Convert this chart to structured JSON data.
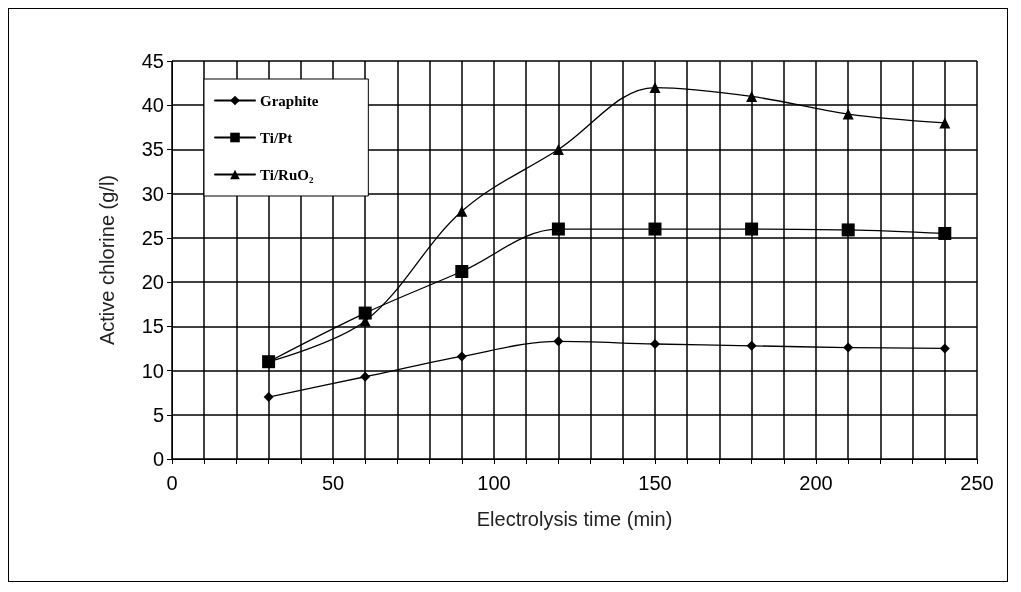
{
  "chart_data": {
    "type": "line",
    "xlabel": "Electrolysis time (min)",
    "ylabel": "Active chlorine (g/l)",
    "x": [
      30,
      60,
      90,
      120,
      150,
      180,
      210,
      240
    ],
    "series": [
      {
        "name": "Graphite",
        "color": "#000000",
        "marker": "diamond",
        "values": [
          7,
          9.3,
          11.6,
          13.3,
          13,
          12.8,
          12.6,
          12.5
        ]
      },
      {
        "name": "Ti/Pt",
        "color": "#000000",
        "marker": "square",
        "values": [
          11,
          16.5,
          21.2,
          26,
          26,
          26,
          25.9,
          25.5
        ]
      },
      {
        "name": "Ti/RuO₂",
        "color": "#000000",
        "marker": "triangle",
        "values": [
          11,
          15.6,
          28,
          35,
          42,
          41,
          39,
          38
        ]
      }
    ],
    "xlim": [
      0,
      250
    ],
    "ylim": [
      0,
      45
    ],
    "xticks": [
      0,
      {
        "value": 10,
        "label": null
      },
      {
        "value": 20,
        "label": null
      },
      {
        "value": 30,
        "label": null
      },
      {
        "value": 40,
        "label": null
      },
      50,
      {
        "value": 60,
        "label": null
      },
      {
        "value": 70,
        "label": null
      },
      {
        "value": 80,
        "label": null
      },
      {
        "value": 90,
        "label": null
      },
      100,
      {
        "value": 110,
        "label": null
      },
      {
        "value": 120,
        "label": null
      },
      {
        "value": 130,
        "label": null
      },
      {
        "value": 140,
        "label": null
      },
      150,
      {
        "value": 160,
        "label": null
      },
      {
        "value": 170,
        "label": null
      },
      {
        "value": 180,
        "label": null
      },
      {
        "value": 190,
        "label": null
      },
      200,
      {
        "value": 210,
        "label": null
      },
      {
        "value": 220,
        "label": null
      },
      {
        "value": 230,
        "label": null
      },
      {
        "value": 240,
        "label": null
      },
      250
    ],
    "yticks": [
      0,
      5,
      10,
      15,
      20,
      25,
      30,
      35,
      40,
      45
    ],
    "grid": true,
    "legend": "top left",
    "line_style": "solid"
  }
}
